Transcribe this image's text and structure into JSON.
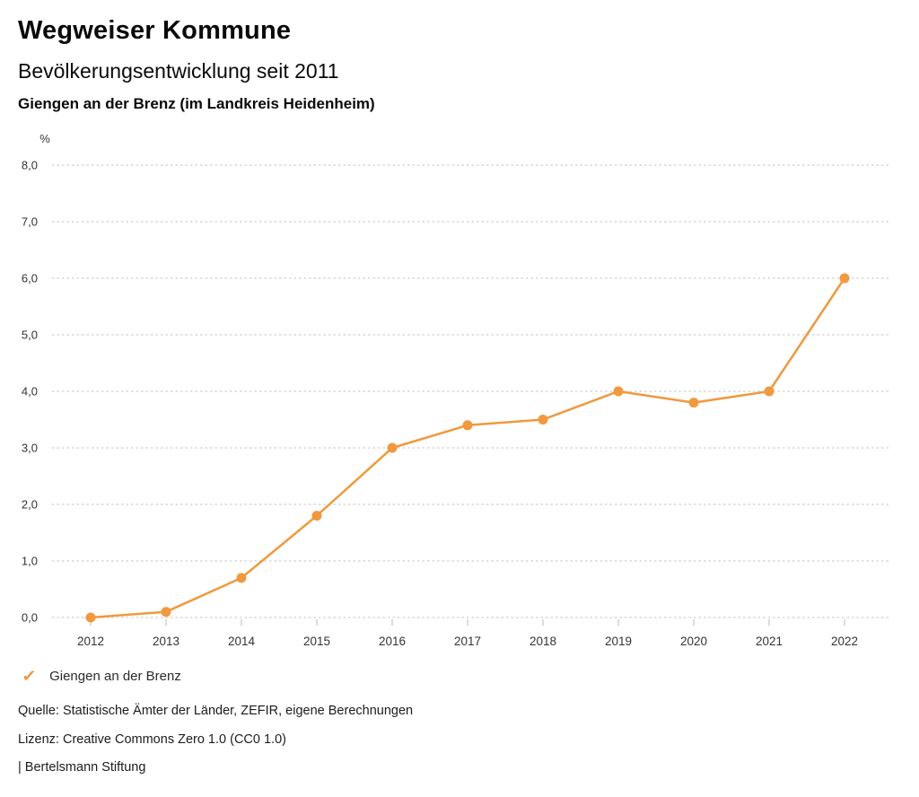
{
  "header": {
    "title": "Wegweiser Kommune",
    "subtitle": "Bevölkerungsentwicklung seit 2011",
    "region": "Giengen an der Brenz (im Landkreis Heidenheim)"
  },
  "chart_data": {
    "type": "line",
    "title": "Bevölkerungsentwicklung seit 2011",
    "subtitle": "Giengen an der Brenz (im Landkreis Heidenheim)",
    "unit_label": "%",
    "x": [
      "2012",
      "2013",
      "2014",
      "2015",
      "2016",
      "2017",
      "2018",
      "2019",
      "2020",
      "2021",
      "2022"
    ],
    "series": [
      {
        "name": "Giengen an der Brenz",
        "values": [
          0.0,
          0.1,
          0.7,
          1.8,
          3.0,
          3.4,
          3.5,
          4.0,
          3.8,
          4.0,
          6.0
        ],
        "color": "#F0993E"
      }
    ],
    "ylim": [
      0,
      8
    ],
    "ytick_labels": [
      "0,0",
      "1,0",
      "2,0",
      "3,0",
      "4,0",
      "5,0",
      "6,0",
      "7,0",
      "8,0"
    ],
    "grid": "horizontal-dotted",
    "gridline_color": "#c3c3c3",
    "tick_color": "#b8b8b8",
    "axis_text_color": "#333333",
    "legend_position": "bottom-left"
  },
  "legend": {
    "check_icon": "✓",
    "label": "Giengen an der Brenz",
    "color": "#F0993E"
  },
  "footer": {
    "source": "Quelle: Statistische Ämter der Länder, ZEFIR, eigene Berechnungen",
    "license": "Lizenz: Creative Commons Zero 1.0 (CC0 1.0)",
    "attribution": "| Bertelsmann Stiftung"
  }
}
